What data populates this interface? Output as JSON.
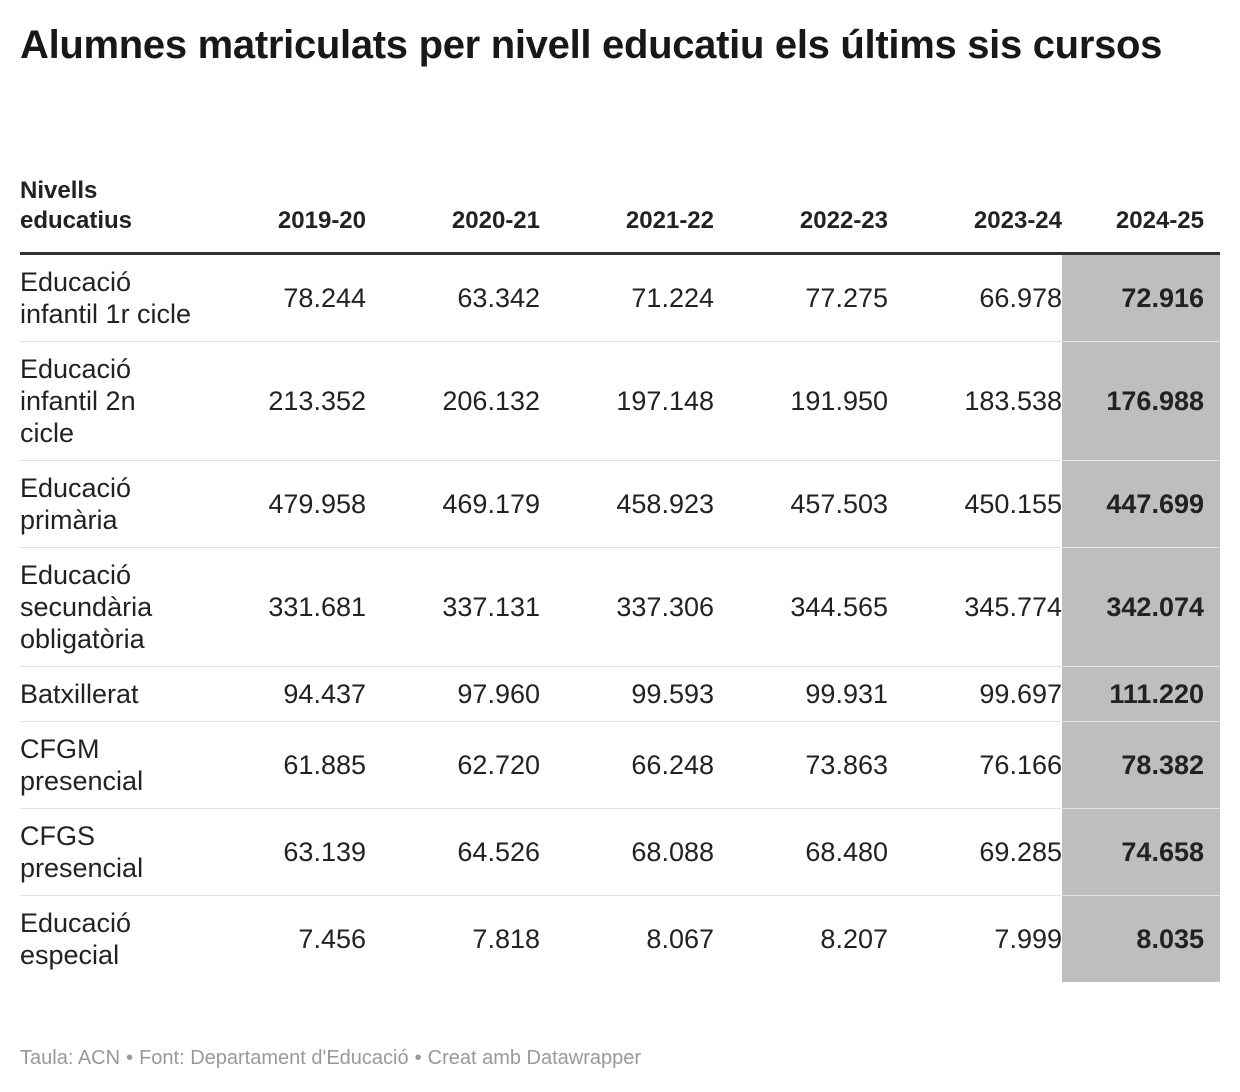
{
  "title": "Alumnes matriculats per nivell educatiu els últims sis cursos",
  "chart_data": {
    "type": "table",
    "title": "Alumnes matriculats per nivell educatiu els últims sis cursos",
    "columns": [
      "Nivells educatius",
      "2019-20",
      "2020-21",
      "2021-22",
      "2022-23",
      "2023-24",
      "2024-25"
    ],
    "highlighted_column": "2024-25",
    "highlight_color": "#bebebe",
    "rows": [
      {
        "label": "Educació infantil 1r cicle",
        "values": [
          "78.244",
          "63.342",
          "71.224",
          "77.275",
          "66.978",
          "72.916"
        ]
      },
      {
        "label": "Educació infantil 2n cicle",
        "values": [
          "213.352",
          "206.132",
          "197.148",
          "191.950",
          "183.538",
          "176.988"
        ]
      },
      {
        "label": "Educació primària",
        "values": [
          "479.958",
          "469.179",
          "458.923",
          "457.503",
          "450.155",
          "447.699"
        ]
      },
      {
        "label": "Educació secundària obligatòria",
        "values": [
          "331.681",
          "337.131",
          "337.306",
          "344.565",
          "345.774",
          "342.074"
        ]
      },
      {
        "label": "Batxillerat",
        "values": [
          "94.437",
          "97.960",
          "99.593",
          "99.931",
          "99.697",
          "111.220"
        ]
      },
      {
        "label": "CFGM presencial",
        "values": [
          "61.885",
          "62.720",
          "66.248",
          "73.863",
          "76.166",
          "78.382"
        ]
      },
      {
        "label": "CFGS presencial",
        "values": [
          "63.139",
          "64.526",
          "68.088",
          "68.480",
          "69.285",
          "74.658"
        ]
      },
      {
        "label": "Educació especial",
        "values": [
          "7.456",
          "7.818",
          "8.067",
          "8.207",
          "7.999",
          "8.035"
        ]
      }
    ]
  },
  "footer": {
    "source_taula": "Taula: ACN",
    "source_font": "Font: Departament d'Educació",
    "credit": "Creat amb Datawrapper",
    "separator": "•"
  }
}
